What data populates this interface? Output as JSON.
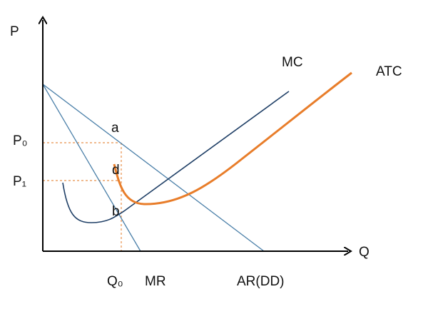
{
  "axes": {
    "y_label": "P",
    "x_label": "Q"
  },
  "curves": {
    "mc": "MC",
    "atc": "ATC",
    "mr": "MR",
    "ar": "AR(DD)"
  },
  "levels": {
    "p0": "P₀",
    "p1": "P₁",
    "q0": "Q₀"
  },
  "points": {
    "a": "a",
    "d": "d",
    "b": "b"
  }
}
